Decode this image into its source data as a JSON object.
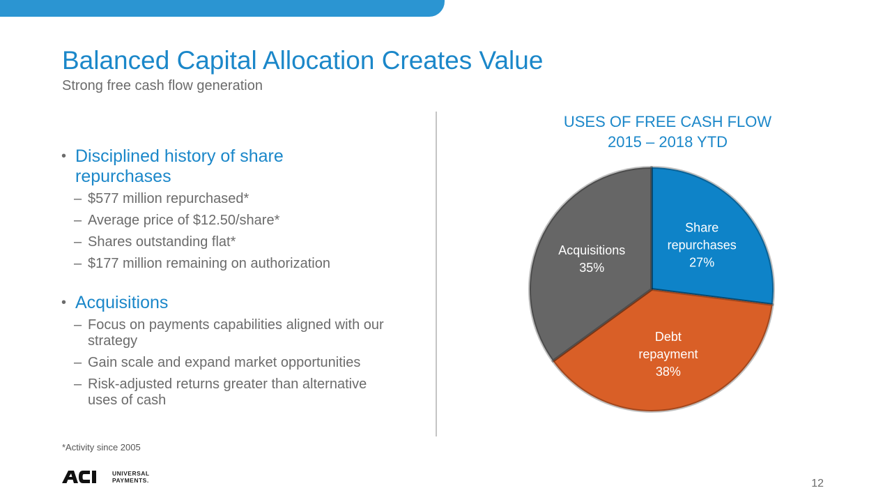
{
  "header": {
    "title": "Balanced Capital Allocation Creates Value",
    "subtitle": "Strong free cash flow generation"
  },
  "sections": [
    {
      "heading": "Disciplined history of share repurchases",
      "items": [
        "$577 million repurchased*",
        "Average price of $12.50/share*",
        "Shares outstanding flat*",
        "$177 million remaining on authorization"
      ]
    },
    {
      "heading": "Acquisitions",
      "items": [
        "Focus on payments capabilities aligned with our strategy",
        "Gain scale and expand market opportunities",
        "Risk-adjusted returns greater than alternative uses of cash"
      ]
    }
  ],
  "footnote": "*Activity since 2005",
  "logo": {
    "mark": "ACI",
    "line1": "UNIVERSAL",
    "line2": "PAYMENTS."
  },
  "page_number": "12",
  "chart_data": {
    "type": "pie",
    "title_line1": "USES OF FREE CASH FLOW",
    "title_line2": "2015 – 2018 YTD",
    "slices": [
      {
        "label_lines": [
          "Share",
          "repurchases"
        ],
        "value": 27,
        "display": "27%",
        "color": "#0e83c8"
      },
      {
        "label_lines": [
          "Debt",
          "repayment"
        ],
        "value": 38,
        "display": "38%",
        "color": "#d95f27"
      },
      {
        "label_lines": [
          "Acquisitions"
        ],
        "value": 35,
        "display": "35%",
        "color": "#666666"
      }
    ]
  }
}
